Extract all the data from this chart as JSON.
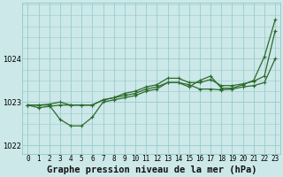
{
  "title": "Graphe pression niveau de la mer (hPa)",
  "hours": [
    0,
    1,
    2,
    3,
    4,
    5,
    6,
    7,
    8,
    9,
    10,
    11,
    12,
    13,
    14,
    15,
    16,
    17,
    18,
    19,
    20,
    21,
    22,
    23
  ],
  "line1": [
    1022.93,
    1022.93,
    1022.95,
    1023.0,
    1022.93,
    1022.93,
    1022.93,
    1023.05,
    1023.1,
    1023.15,
    1023.2,
    1023.3,
    1023.35,
    1023.45,
    1023.45,
    1023.4,
    1023.3,
    1023.3,
    1023.28,
    1023.3,
    1023.35,
    1023.38,
    1023.45,
    1024.0
  ],
  "line2": [
    1022.93,
    1022.87,
    1022.9,
    1022.93,
    1022.93,
    1022.93,
    1022.93,
    1023.05,
    1023.1,
    1023.2,
    1023.25,
    1023.35,
    1023.4,
    1023.55,
    1023.55,
    1023.45,
    1023.45,
    1023.52,
    1023.38,
    1023.38,
    1023.42,
    1023.48,
    1023.6,
    1024.65
  ],
  "line3": [
    1022.93,
    1022.93,
    1022.93,
    1022.6,
    1022.45,
    1022.45,
    1022.65,
    1023.0,
    1023.05,
    1023.1,
    1023.15,
    1023.25,
    1023.3,
    1023.45,
    1023.45,
    1023.35,
    1023.5,
    1023.6,
    1023.32,
    1023.32,
    1023.4,
    1023.5,
    1024.05,
    1024.9
  ],
  "line_color": "#2d6a2d",
  "bg_color": "#cce8e8",
  "grid_color": "#99cccc",
  "ylim": [
    1021.8,
    1025.3
  ],
  "yticks": [
    1022,
    1023,
    1024
  ],
  "title_fontsize": 7.5,
  "tick_fontsize": 5.5,
  "fig_width": 3.2,
  "fig_height": 2.0
}
